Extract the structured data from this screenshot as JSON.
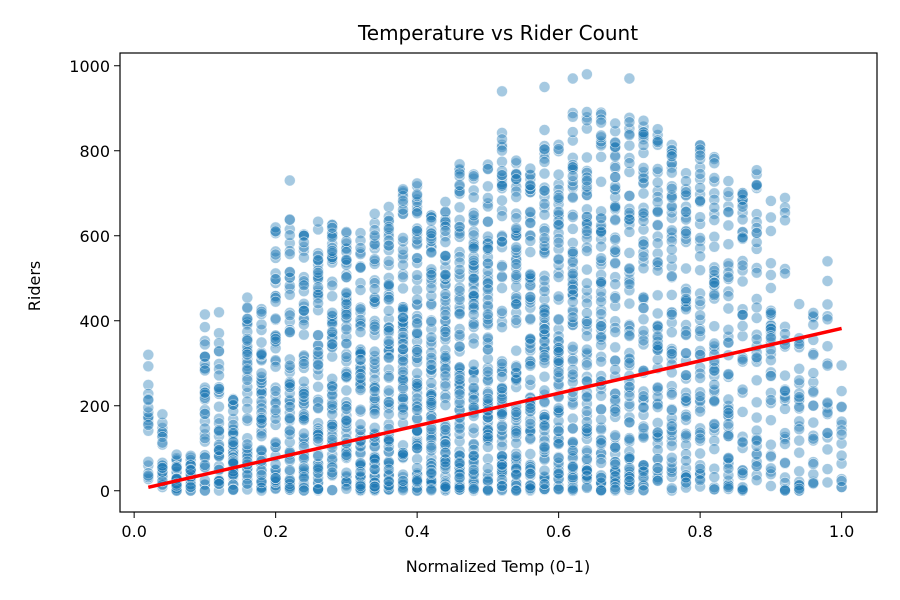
{
  "chart_data": {
    "type": "scatter",
    "title": "Temperature vs Rider Count",
    "xlabel": "Normalized Temp (0–1)",
    "ylabel": "Riders",
    "xlim": [
      -0.02,
      1.05
    ],
    "ylim": [
      -50,
      1030
    ],
    "x_ticks": [
      0.0,
      0.2,
      0.4,
      0.6,
      0.8,
      1.0
    ],
    "x_tick_labels": [
      "0.0",
      "0.2",
      "0.4",
      "0.6",
      "0.8",
      "1.0"
    ],
    "y_ticks": [
      0,
      200,
      400,
      600,
      800,
      1000
    ],
    "y_tick_labels": [
      "0",
      "200",
      "400",
      "600",
      "800",
      "1000"
    ],
    "grid": false,
    "legend": "none",
    "colors": {
      "points": "#1f77b4",
      "trend_line": "#ff0000"
    },
    "point_alpha": 0.4,
    "x_step": 0.02,
    "upper_envelope": [
      [
        0.02,
        320
      ],
      [
        0.04,
        180
      ],
      [
        0.06,
        100
      ],
      [
        0.08,
        90
      ],
      [
        0.1,
        420
      ],
      [
        0.12,
        420
      ],
      [
        0.14,
        240
      ],
      [
        0.16,
        500
      ],
      [
        0.18,
        470
      ],
      [
        0.2,
        680
      ],
      [
        0.22,
        730
      ],
      [
        0.24,
        690
      ],
      [
        0.26,
        690
      ],
      [
        0.28,
        690
      ],
      [
        0.3,
        690
      ],
      [
        0.32,
        720
      ],
      [
        0.34,
        730
      ],
      [
        0.36,
        730
      ],
      [
        0.38,
        800
      ],
      [
        0.4,
        820
      ],
      [
        0.42,
        740
      ],
      [
        0.44,
        770
      ],
      [
        0.46,
        840
      ],
      [
        0.48,
        810
      ],
      [
        0.5,
        840
      ],
      [
        0.52,
        940
      ],
      [
        0.54,
        850
      ],
      [
        0.56,
        840
      ],
      [
        0.58,
        950
      ],
      [
        0.6,
        900
      ],
      [
        0.62,
        970
      ],
      [
        0.64,
        980
      ],
      [
        0.66,
        970
      ],
      [
        0.68,
        940
      ],
      [
        0.7,
        970
      ],
      [
        0.72,
        960
      ],
      [
        0.74,
        930
      ],
      [
        0.76,
        890
      ],
      [
        0.78,
        880
      ],
      [
        0.8,
        910
      ],
      [
        0.82,
        900
      ],
      [
        0.84,
        800
      ],
      [
        0.86,
        790
      ],
      [
        0.88,
        820
      ],
      [
        0.9,
        770
      ],
      [
        0.92,
        770
      ],
      [
        0.94,
        580
      ],
      [
        0.96,
        460
      ],
      [
        0.98,
        540
      ],
      [
        1.0,
        300
      ]
    ],
    "outliers": [
      [
        0.02,
        155
      ],
      [
        0.02,
        320
      ],
      [
        0.04,
        180
      ],
      [
        0.1,
        415
      ],
      [
        0.12,
        420
      ],
      [
        0.22,
        730
      ],
      [
        0.52,
        940
      ],
      [
        0.58,
        950
      ],
      [
        0.62,
        970
      ],
      [
        0.64,
        980
      ],
      [
        0.7,
        970
      ],
      [
        0.98,
        540
      ],
      [
        1.0,
        295
      ]
    ],
    "trend_line": [
      [
        0.02,
        8
      ],
      [
        1.0,
        382
      ]
    ]
  }
}
